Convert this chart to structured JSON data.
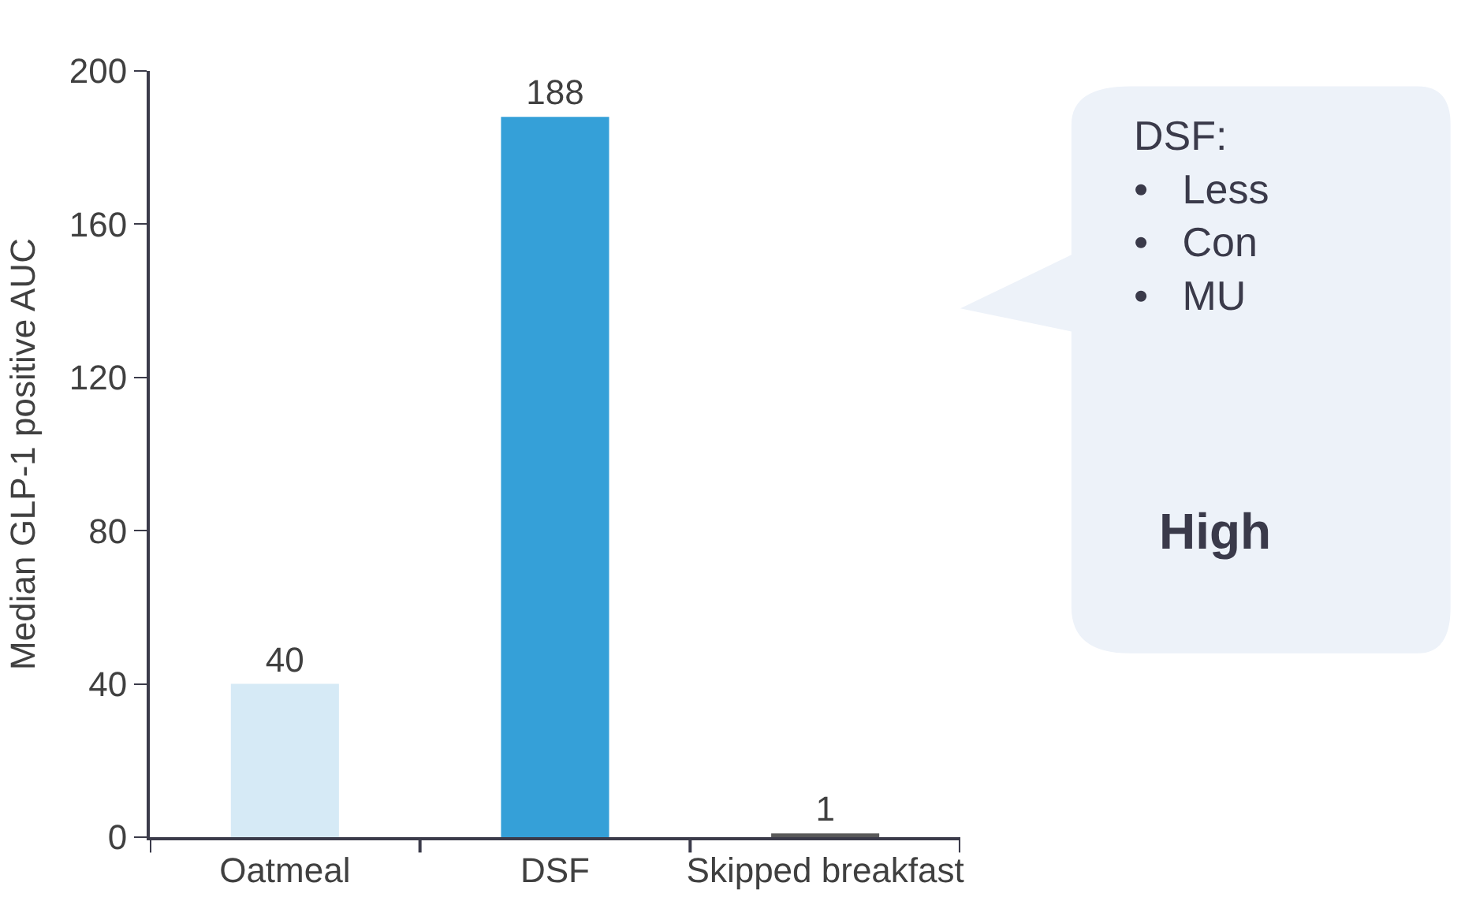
{
  "chart_data": {
    "type": "bar",
    "ylabel": "Median GLP-1 positive AUC",
    "categories": [
      "Oatmeal",
      "DSF",
      "Skipped breakfast"
    ],
    "values": [
      40,
      188,
      1
    ],
    "colors": [
      "#d6eaf6",
      "#35a0d8",
      "#595959"
    ],
    "data_labels": true,
    "ylim": [
      0,
      200
    ],
    "yticks": [
      0,
      40,
      80,
      120,
      160,
      200
    ],
    "legend": false,
    "annotations": [
      "DSF:",
      "•   Less",
      "•   Con",
      "•   MU",
      "High"
    ]
  }
}
